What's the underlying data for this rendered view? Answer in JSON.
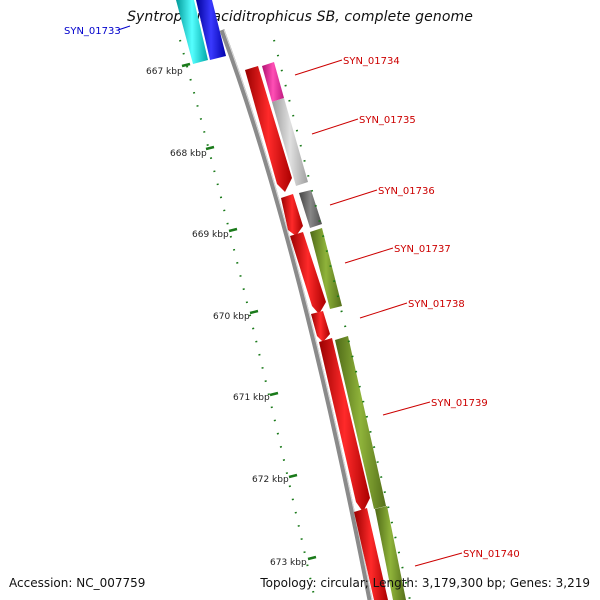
{
  "title": "Syntrophus aciditrophicus SB, complete genome",
  "accession_label": "Accession: NC_007759",
  "topology_label": "Topology: circular; Length: 3,179,300 bp; Genes: 3,219",
  "ticks": [
    "667 kbp",
    "668 kbp",
    "669 kbp",
    "670 kbp",
    "671 kbp",
    "672 kbp",
    "673 kbp"
  ],
  "genes": [
    {
      "id": "SYN_01733",
      "color": "#0000cc"
    },
    {
      "id": "SYN_01734",
      "color": "#cc0000"
    },
    {
      "id": "SYN_01735",
      "color": "#cc0000"
    },
    {
      "id": "SYN_01736",
      "color": "#cc0000"
    },
    {
      "id": "SYN_01737",
      "color": "#cc0000"
    },
    {
      "id": "SYN_01738",
      "color": "#cc0000"
    },
    {
      "id": "SYN_01739",
      "color": "#cc0000"
    },
    {
      "id": "SYN_01740",
      "color": "#cc0000"
    }
  ],
  "colors": {
    "backbone": "#8a8a8a",
    "cds": "#ff0000",
    "tick": "#1a7a1a",
    "cyan": "#00cccc",
    "blue": "#0000ee",
    "pink": "#ee2299",
    "silver": "#c0c0c0",
    "darkgray": "#666666",
    "olive": "#6b8e23"
  }
}
